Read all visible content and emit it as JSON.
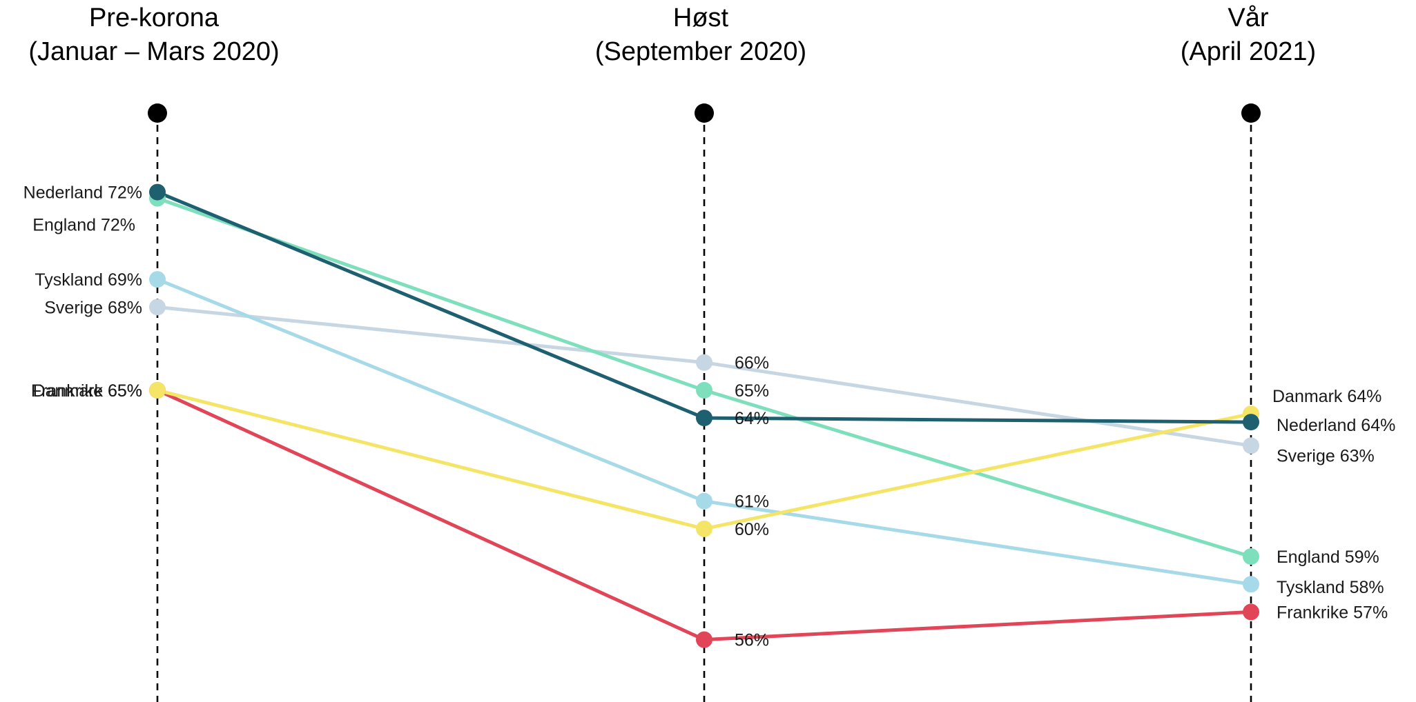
{
  "chart_data": {
    "type": "line",
    "title": "",
    "xlabel": "",
    "ylabel": "",
    "grid": false,
    "legend": "none",
    "ylim": [
      54,
      75
    ],
    "periods": [
      {
        "name": "Pre-korona",
        "sub": "(Januar – Mars 2020)"
      },
      {
        "name": "Høst",
        "sub": "(September 2020)"
      },
      {
        "name": "Vår",
        "sub": "(April 2021)"
      }
    ],
    "series": [
      {
        "name": "Sverige",
        "color": "#c6d6e2",
        "values": [
          68,
          66,
          63
        ],
        "labels": [
          "Sverige 68%",
          "66%",
          "Sverige 63%"
        ]
      },
      {
        "name": "Tyskland",
        "color": "#a7dae8",
        "values": [
          69,
          61,
          58
        ],
        "labels": [
          "Tyskland 69%",
          "61%",
          "Tyskland 58%"
        ]
      },
      {
        "name": "England",
        "color": "#7ddfbc",
        "values": [
          72,
          65,
          59
        ],
        "labels": [
          "England 72%",
          "65%",
          "England 59%"
        ]
      },
      {
        "name": "Frankrike",
        "color": "#e04558",
        "values": [
          65,
          56,
          57
        ],
        "labels": [
          "Frankrike 65%",
          "56%",
          "Frankrike 57%"
        ]
      },
      {
        "name": "Danmark",
        "color": "#f5e566",
        "values": [
          65,
          60,
          64
        ],
        "labels": [
          "Danmark 65%",
          "60%",
          "Danmark 64%"
        ]
      },
      {
        "name": "Nederland",
        "color": "#1e5f70",
        "values": [
          72,
          64,
          64
        ],
        "labels": [
          "Nederland 72%",
          "64%",
          "Nederland 64%"
        ]
      }
    ]
  }
}
